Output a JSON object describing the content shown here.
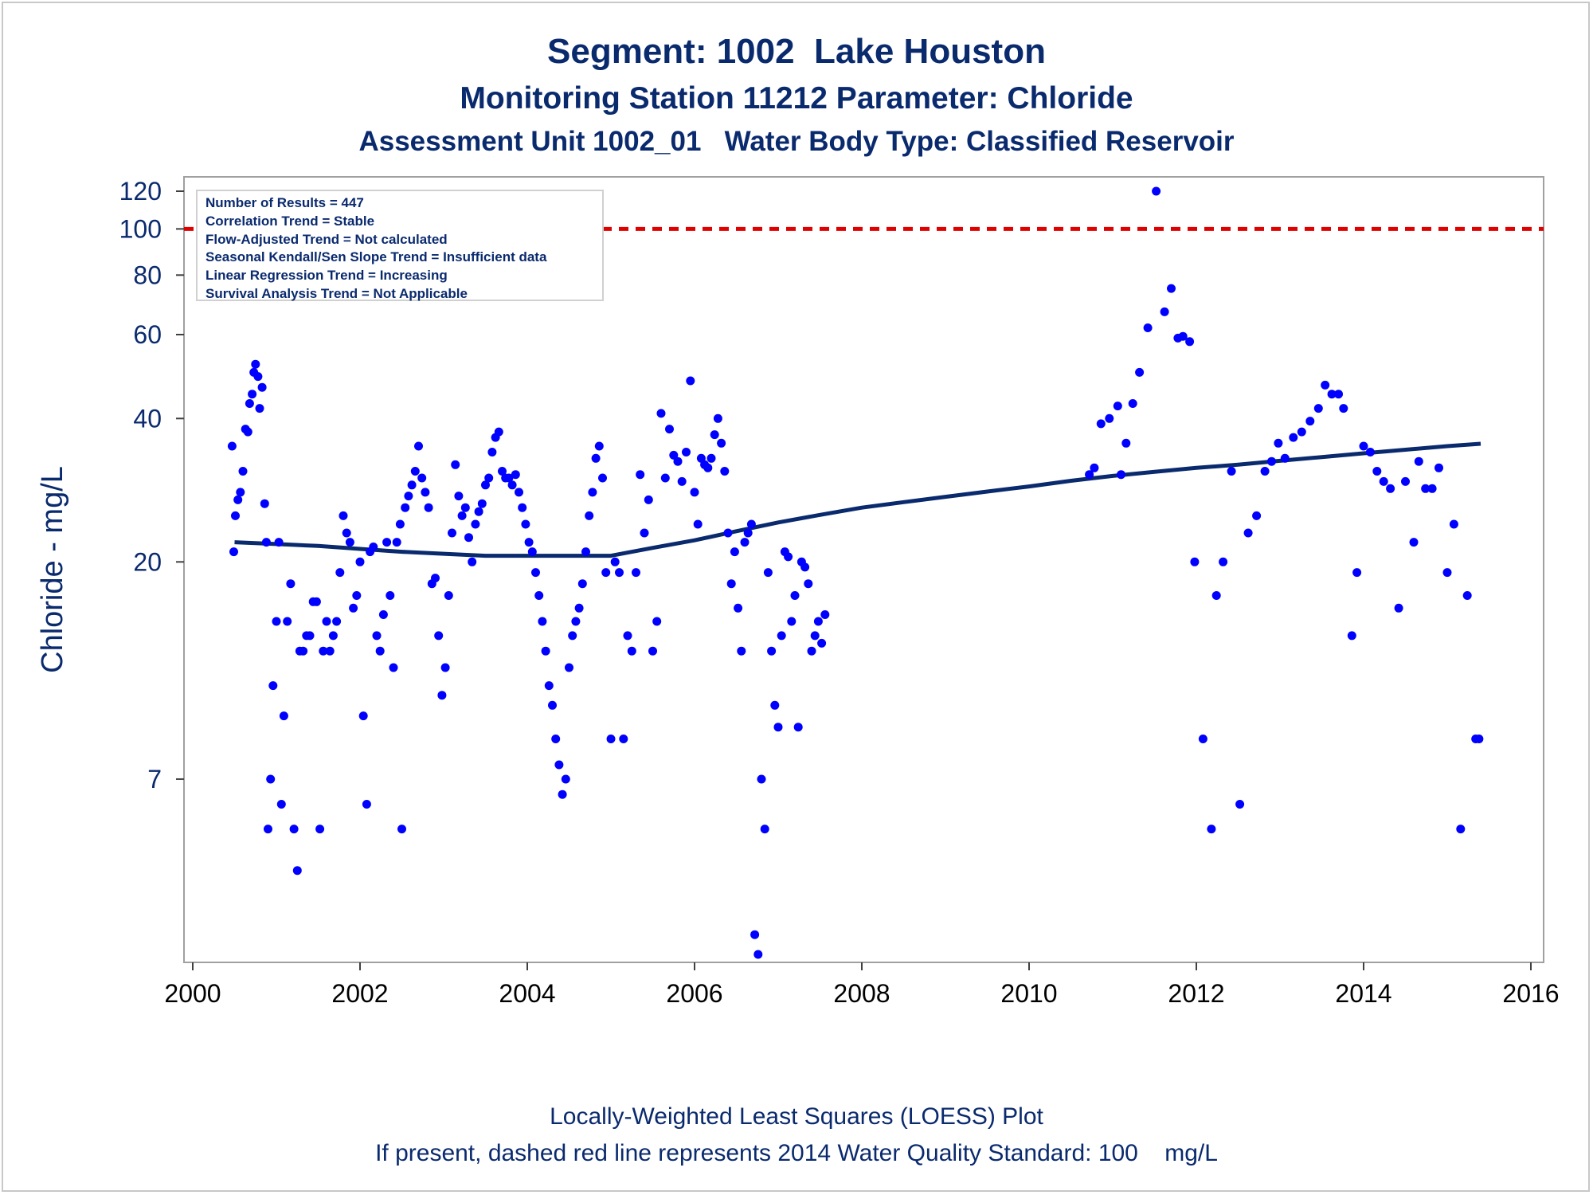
{
  "title": "Segment: 1002  Lake Houston",
  "subtitle1": "Monitoring Station 11212 Parameter: Chloride",
  "subtitle2": "Assessment Unit 1002_01   Water Body Type: Classified Reservoir",
  "footnote1": "Locally-Weighted Least Squares (LOESS) Plot",
  "footnote2": "If present, dashed red line represents 2014 Water Quality Standard: 100    mg/L",
  "stats": [
    "Number of Results = 447",
    "Correlation Trend = Stable",
    "Flow-Adjusted Trend = Not calculated",
    "Seasonal Kendall/Sen Slope Trend = Insufficient data",
    "Linear Regression Trend = Increasing",
    "Survival Analysis Trend = Not Applicable"
  ],
  "colors": {
    "points": "#0000ff",
    "loess": "#0a2a6e",
    "standard": "#e00000",
    "text": "#0a2a6e"
  },
  "chart_data": {
    "type": "scatter",
    "xlabel": "",
    "ylabel": "Chloride - mg/L",
    "y_scale": "log",
    "xlim": [
      2000,
      2016
    ],
    "ylim": [
      3,
      120
    ],
    "x_ticks": [
      "2000",
      "2002",
      "2004",
      "2006",
      "2008",
      "2010",
      "2012",
      "2014",
      "2016"
    ],
    "y_ticks": [
      120,
      100,
      80,
      60,
      40,
      20,
      7
    ],
    "grid": false,
    "standard": {
      "value": 100,
      "style": "dashed red line"
    },
    "loess": [
      [
        2000.5,
        22
      ],
      [
        2001.0,
        21.8
      ],
      [
        2001.5,
        21.6
      ],
      [
        2002.0,
        21.3
      ],
      [
        2002.5,
        21.0
      ],
      [
        2003.0,
        20.8
      ],
      [
        2003.5,
        20.6
      ],
      [
        2004.0,
        20.6
      ],
      [
        2004.5,
        20.6
      ],
      [
        2005.0,
        20.6
      ],
      [
        2005.5,
        21.4
      ],
      [
        2006.0,
        22.2
      ],
      [
        2006.5,
        23.2
      ],
      [
        2007.0,
        24.2
      ],
      [
        2007.5,
        25.1
      ],
      [
        2008.0,
        26.0
      ],
      [
        2008.5,
        26.7
      ],
      [
        2009.0,
        27.4
      ],
      [
        2009.5,
        28.1
      ],
      [
        2010.0,
        28.8
      ],
      [
        2010.5,
        29.6
      ],
      [
        2011.0,
        30.3
      ],
      [
        2011.5,
        30.9
      ],
      [
        2012.0,
        31.5
      ],
      [
        2012.5,
        32.0
      ],
      [
        2013.0,
        32.6
      ],
      [
        2013.5,
        33.2
      ],
      [
        2014.0,
        33.8
      ],
      [
        2014.5,
        34.4
      ],
      [
        2015.0,
        35.0
      ],
      [
        2015.4,
        35.4
      ]
    ],
    "points": [
      [
        2000.47,
        35
      ],
      [
        2000.49,
        21
      ],
      [
        2000.51,
        25
      ],
      [
        2000.54,
        27
      ],
      [
        2000.57,
        28
      ],
      [
        2000.6,
        31
      ],
      [
        2000.63,
        38
      ],
      [
        2000.66,
        37.5
      ],
      [
        2000.68,
        43
      ],
      [
        2000.71,
        45
      ],
      [
        2000.73,
        50
      ],
      [
        2000.75,
        52
      ],
      [
        2000.78,
        49
      ],
      [
        2000.8,
        42
      ],
      [
        2000.83,
        46.5
      ],
      [
        2000.86,
        26.5
      ],
      [
        2000.88,
        22
      ],
      [
        2000.9,
        5.5
      ],
      [
        2000.93,
        7
      ],
      [
        2000.96,
        11
      ],
      [
        2001.0,
        15
      ],
      [
        2001.03,
        22
      ],
      [
        2001.06,
        6.2
      ],
      [
        2001.09,
        9.5
      ],
      [
        2001.13,
        15
      ],
      [
        2001.17,
        18
      ],
      [
        2001.21,
        5.5
      ],
      [
        2001.25,
        4.5
      ],
      [
        2001.28,
        13
      ],
      [
        2001.32,
        13
      ],
      [
        2001.36,
        14
      ],
      [
        2001.4,
        14
      ],
      [
        2001.44,
        16.5
      ],
      [
        2001.48,
        16.5
      ],
      [
        2001.52,
        5.5
      ],
      [
        2001.56,
        13
      ],
      [
        2001.6,
        15
      ],
      [
        2001.64,
        13
      ],
      [
        2001.68,
        14
      ],
      [
        2001.72,
        15
      ],
      [
        2001.76,
        19
      ],
      [
        2001.8,
        25
      ],
      [
        2001.84,
        23
      ],
      [
        2001.88,
        22
      ],
      [
        2001.92,
        16
      ],
      [
        2001.96,
        17
      ],
      [
        2002.0,
        20
      ],
      [
        2002.04,
        9.5
      ],
      [
        2002.08,
        6.2
      ],
      [
        2002.12,
        21
      ],
      [
        2002.16,
        21.5
      ],
      [
        2002.2,
        14
      ],
      [
        2002.24,
        13
      ],
      [
        2002.28,
        15.5
      ],
      [
        2002.32,
        22
      ],
      [
        2002.36,
        17
      ],
      [
        2002.4,
        12
      ],
      [
        2002.44,
        22
      ],
      [
        2002.48,
        24
      ],
      [
        2002.5,
        5.5
      ],
      [
        2002.54,
        26
      ],
      [
        2002.58,
        27.5
      ],
      [
        2002.62,
        29
      ],
      [
        2002.66,
        31
      ],
      [
        2002.7,
        35
      ],
      [
        2002.74,
        30
      ],
      [
        2002.78,
        28
      ],
      [
        2002.82,
        26
      ],
      [
        2002.86,
        18
      ],
      [
        2002.9,
        18.5
      ],
      [
        2002.94,
        14
      ],
      [
        2002.98,
        10.5
      ],
      [
        2003.02,
        12
      ],
      [
        2003.06,
        17
      ],
      [
        2003.1,
        23
      ],
      [
        2003.14,
        32
      ],
      [
        2003.18,
        27.5
      ],
      [
        2003.22,
        25
      ],
      [
        2003.26,
        26
      ],
      [
        2003.3,
        22.5
      ],
      [
        2003.34,
        20
      ],
      [
        2003.38,
        24
      ],
      [
        2003.42,
        25.5
      ],
      [
        2003.46,
        26.5
      ],
      [
        2003.5,
        29
      ],
      [
        2003.54,
        30
      ],
      [
        2003.58,
        34
      ],
      [
        2003.62,
        36.5
      ],
      [
        2003.66,
        37.5
      ],
      [
        2003.7,
        31
      ],
      [
        2003.74,
        30
      ],
      [
        2003.78,
        30
      ],
      [
        2003.82,
        29
      ],
      [
        2003.86,
        30.5
      ],
      [
        2003.9,
        28
      ],
      [
        2003.94,
        26
      ],
      [
        2003.98,
        24
      ],
      [
        2004.02,
        22
      ],
      [
        2004.06,
        21
      ],
      [
        2004.1,
        19
      ],
      [
        2004.14,
        17
      ],
      [
        2004.18,
        15
      ],
      [
        2004.22,
        13
      ],
      [
        2004.26,
        11
      ],
      [
        2004.3,
        10
      ],
      [
        2004.34,
        8.5
      ],
      [
        2004.38,
        7.5
      ],
      [
        2004.42,
        6.5
      ],
      [
        2004.46,
        7
      ],
      [
        2004.5,
        12
      ],
      [
        2004.54,
        14
      ],
      [
        2004.58,
        15
      ],
      [
        2004.62,
        16
      ],
      [
        2004.66,
        18
      ],
      [
        2004.7,
        21
      ],
      [
        2004.74,
        25
      ],
      [
        2004.78,
        28
      ],
      [
        2004.82,
        33
      ],
      [
        2004.86,
        35
      ],
      [
        2004.9,
        30
      ],
      [
        2004.94,
        19
      ],
      [
        2005.0,
        8.5
      ],
      [
        2005.05,
        20
      ],
      [
        2005.1,
        19
      ],
      [
        2005.15,
        8.5
      ],
      [
        2005.2,
        14
      ],
      [
        2005.25,
        13
      ],
      [
        2005.3,
        19
      ],
      [
        2005.35,
        30.5
      ],
      [
        2005.4,
        23
      ],
      [
        2005.45,
        27
      ],
      [
        2005.5,
        13
      ],
      [
        2005.55,
        15
      ],
      [
        2005.6,
        41
      ],
      [
        2005.65,
        30
      ],
      [
        2005.7,
        38
      ],
      [
        2005.75,
        33.5
      ],
      [
        2005.8,
        32.5
      ],
      [
        2005.85,
        29.5
      ],
      [
        2005.9,
        34
      ],
      [
        2005.95,
        48
      ],
      [
        2006.0,
        28
      ],
      [
        2006.04,
        24
      ],
      [
        2006.08,
        33
      ],
      [
        2006.12,
        32
      ],
      [
        2006.16,
        31.5
      ],
      [
        2006.2,
        33
      ],
      [
        2006.24,
        37
      ],
      [
        2006.28,
        40
      ],
      [
        2006.32,
        35.5
      ],
      [
        2006.36,
        31
      ],
      [
        2006.4,
        23
      ],
      [
        2006.44,
        18
      ],
      [
        2006.48,
        21
      ],
      [
        2006.52,
        16
      ],
      [
        2006.56,
        13
      ],
      [
        2006.6,
        22
      ],
      [
        2006.64,
        23
      ],
      [
        2006.68,
        24
      ],
      [
        2006.72,
        3.3
      ],
      [
        2006.76,
        3
      ],
      [
        2006.8,
        7
      ],
      [
        2006.84,
        5.5
      ],
      [
        2006.88,
        19
      ],
      [
        2006.92,
        13
      ],
      [
        2006.96,
        10
      ],
      [
        2007.0,
        9
      ],
      [
        2007.04,
        14
      ],
      [
        2007.08,
        21
      ],
      [
        2007.12,
        20.5
      ],
      [
        2007.16,
        15
      ],
      [
        2007.2,
        17
      ],
      [
        2007.24,
        9
      ],
      [
        2007.28,
        20
      ],
      [
        2007.32,
        19.5
      ],
      [
        2007.36,
        18
      ],
      [
        2007.4,
        13
      ],
      [
        2007.44,
        14
      ],
      [
        2007.48,
        15
      ],
      [
        2007.52,
        13.5
      ],
      [
        2007.56,
        15.5
      ],
      [
        2010.72,
        30.5
      ],
      [
        2010.78,
        31.5
      ],
      [
        2010.86,
        39
      ],
      [
        2010.96,
        40
      ],
      [
        2011.06,
        42.5
      ],
      [
        2011.1,
        30.5
      ],
      [
        2011.16,
        35.5
      ],
      [
        2011.24,
        43
      ],
      [
        2011.32,
        50
      ],
      [
        2011.42,
        62
      ],
      [
        2011.52,
        120
      ],
      [
        2011.62,
        67
      ],
      [
        2011.7,
        75
      ],
      [
        2011.78,
        59
      ],
      [
        2011.84,
        59.5
      ],
      [
        2011.92,
        58
      ],
      [
        2011.98,
        20
      ],
      [
        2012.08,
        8.5
      ],
      [
        2012.18,
        5.5
      ],
      [
        2012.24,
        17
      ],
      [
        2012.32,
        20
      ],
      [
        2012.42,
        31
      ],
      [
        2012.52,
        6.2
      ],
      [
        2012.62,
        23
      ],
      [
        2012.72,
        25
      ],
      [
        2012.82,
        31
      ],
      [
        2012.9,
        32.5
      ],
      [
        2012.98,
        35.5
      ],
      [
        2013.06,
        33
      ],
      [
        2013.16,
        36.5
      ],
      [
        2013.26,
        37.5
      ],
      [
        2013.36,
        39.5
      ],
      [
        2013.46,
        42
      ],
      [
        2013.54,
        47
      ],
      [
        2013.62,
        45
      ],
      [
        2013.7,
        45
      ],
      [
        2013.76,
        42
      ],
      [
        2013.86,
        14
      ],
      [
        2013.92,
        19
      ],
      [
        2014.0,
        35
      ],
      [
        2014.08,
        34
      ],
      [
        2014.16,
        31
      ],
      [
        2014.24,
        29.5
      ],
      [
        2014.32,
        28.5
      ],
      [
        2014.42,
        16
      ],
      [
        2014.5,
        29.5
      ],
      [
        2014.6,
        22
      ],
      [
        2014.66,
        32.5
      ],
      [
        2014.74,
        28.5
      ],
      [
        2014.82,
        28.5
      ],
      [
        2014.9,
        31.5
      ],
      [
        2015.0,
        19
      ],
      [
        2015.08,
        24
      ],
      [
        2015.16,
        5.5
      ],
      [
        2015.24,
        17
      ],
      [
        2015.34,
        8.5
      ],
      [
        2015.38,
        8.5
      ]
    ]
  }
}
